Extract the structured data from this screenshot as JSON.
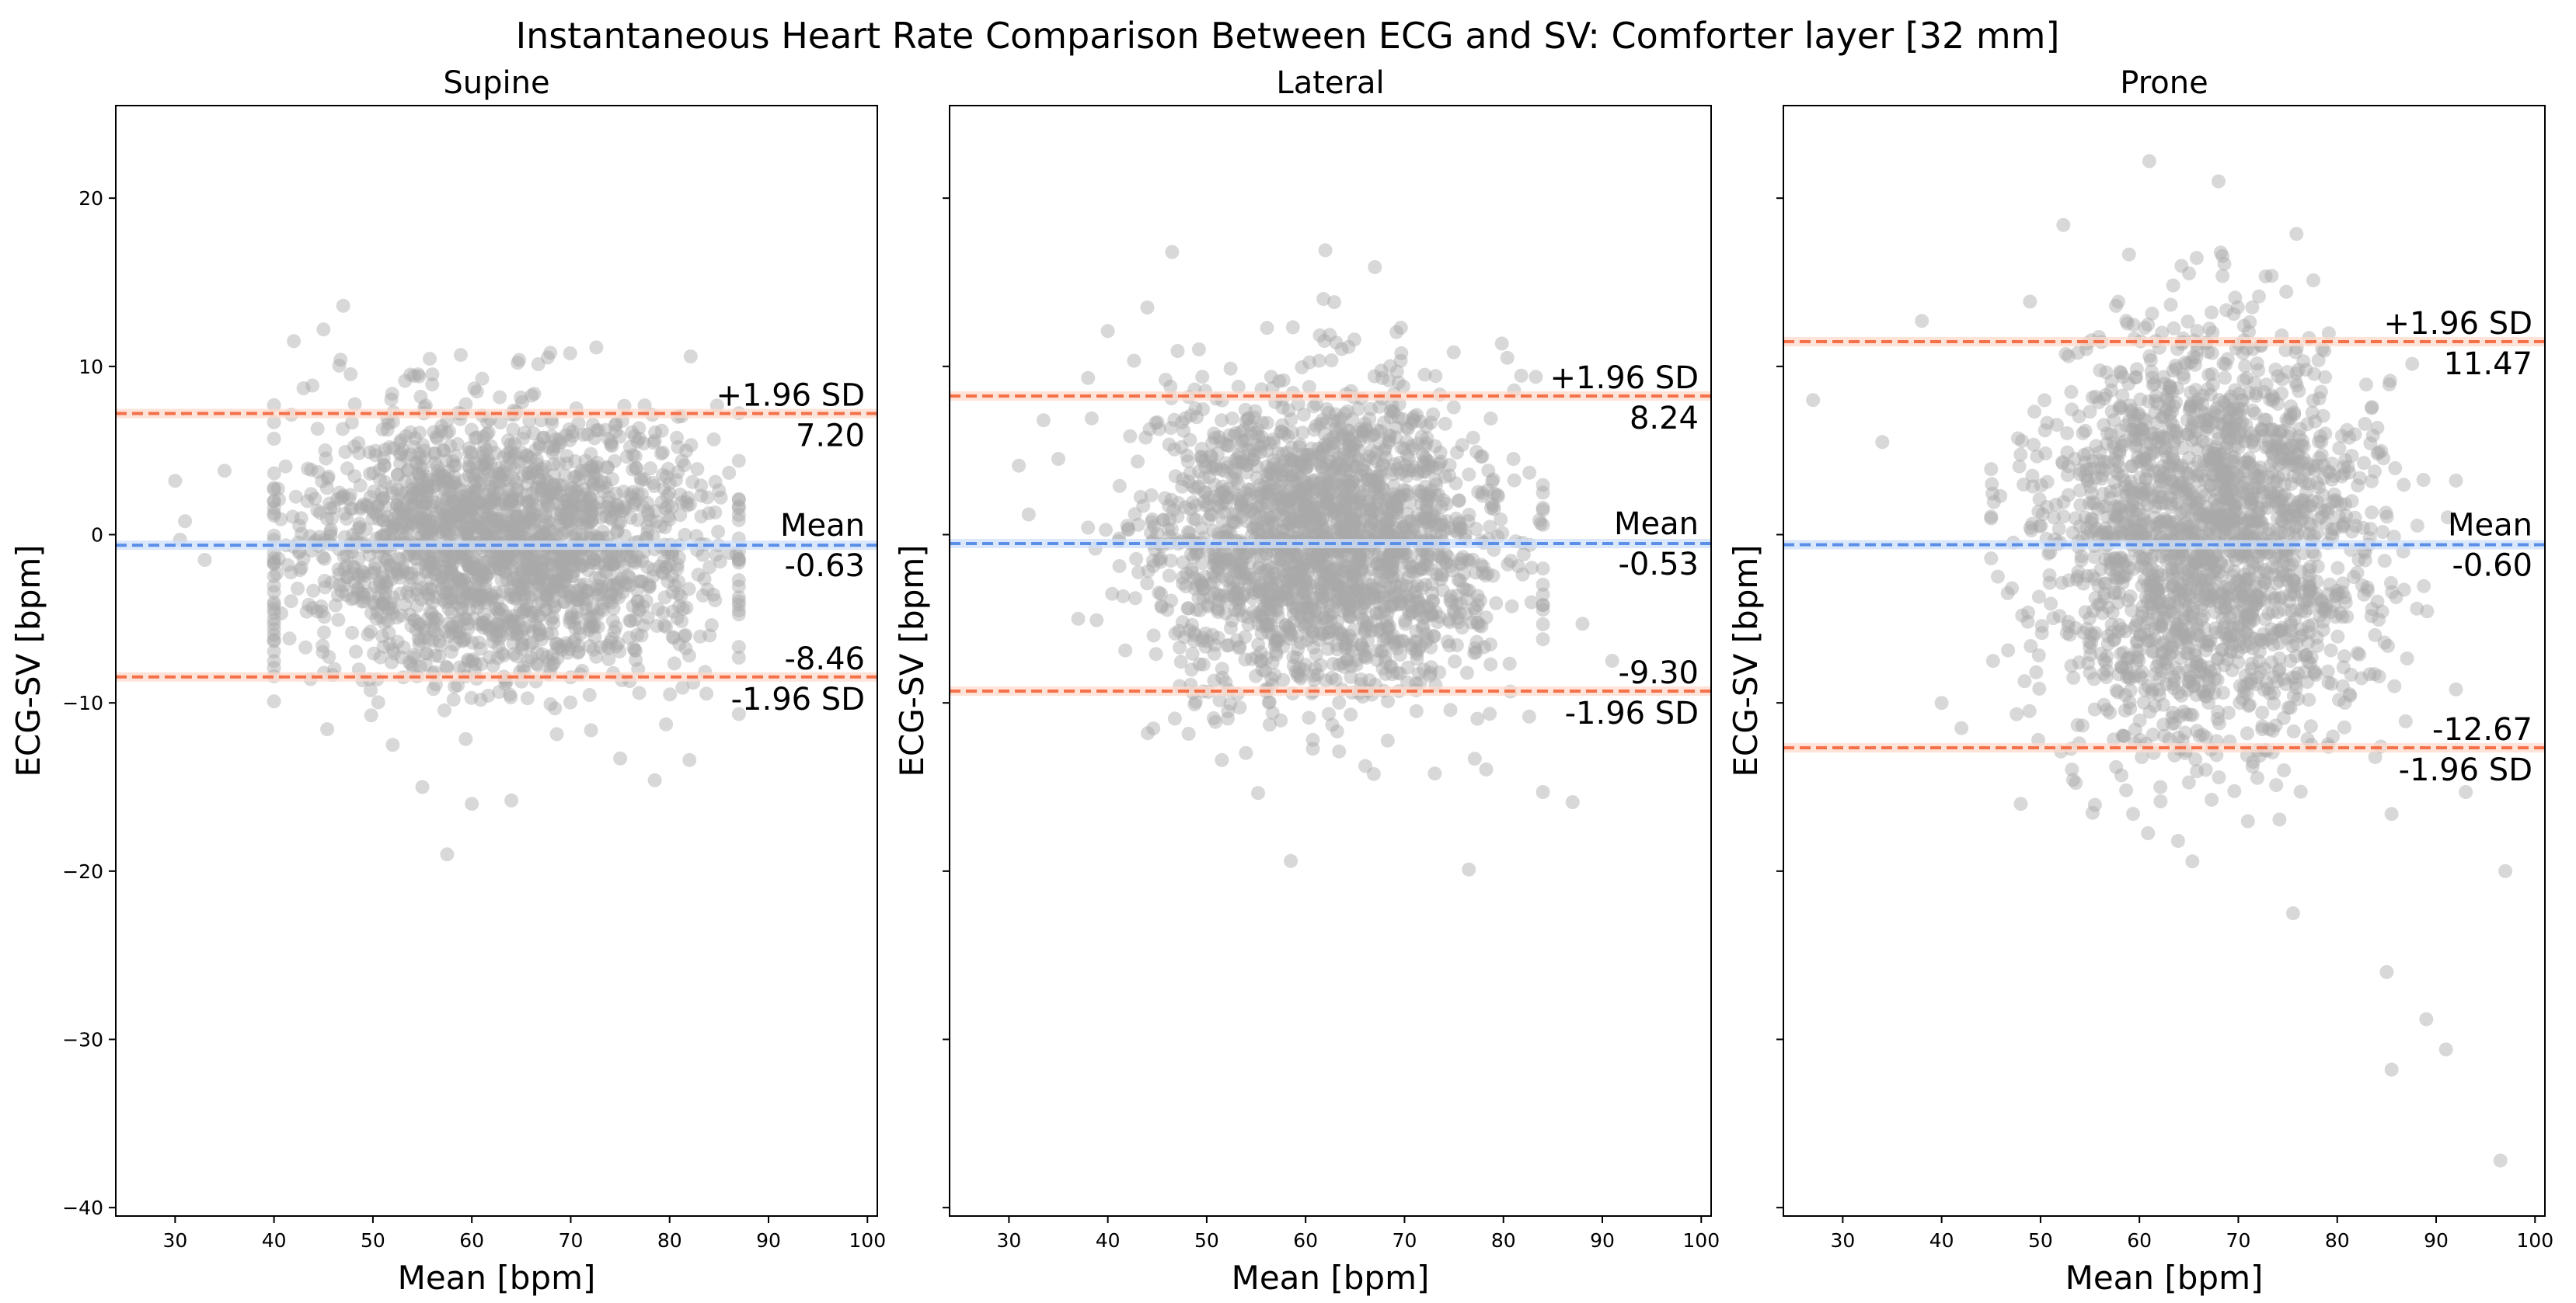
{
  "figure_title": "Instantaneous Heart Rate Comparison Between ECG and SV: Comforter layer [32 mm]",
  "colors": {
    "points": "#a9a9a9",
    "mean_line": "#5b8fe8",
    "limit_line": "#f4714a",
    "limit_band": "#fdd9cc",
    "mean_band": "#cfdffa"
  },
  "chart_data": [
    {
      "type": "scatter",
      "title": "Supine",
      "xlabel": "Mean [bpm]",
      "ylabel": "ECG-SV [bpm]",
      "xlim": [
        24,
        101
      ],
      "ylim": [
        -40.5,
        25.5
      ],
      "xticks": [
        30,
        40,
        50,
        60,
        70,
        80,
        90,
        100
      ],
      "yticks": [
        20,
        10,
        0,
        -10,
        -20,
        -30,
        -40
      ],
      "ytick_labels": [
        "20",
        "10",
        "0",
        "−10",
        "−20",
        "−30",
        "−40"
      ],
      "show_ytick_labels": true,
      "mean": -0.63,
      "upper_loa": 7.2,
      "lower_loa": -8.46,
      "mean_label": "Mean",
      "mean_value_label": "-0.63",
      "upper_label": "+1.96 SD",
      "upper_value_label": "7.20",
      "lower_label": "-1.96 SD",
      "lower_value_label": "-8.46",
      "cloud": {
        "n": 2100,
        "x_center": 63,
        "x_sd": 10.5,
        "x_min": 40,
        "x_max": 87,
        "y_sd": 4.0,
        "seed": 11
      },
      "outliers": [
        [
          30,
          3.2
        ],
        [
          31,
          0.8
        ],
        [
          30.5,
          -0.3
        ],
        [
          33,
          -1.5
        ],
        [
          35,
          3.8
        ],
        [
          42,
          11.5
        ],
        [
          45,
          12.2
        ],
        [
          47,
          13.6
        ],
        [
          55,
          -15
        ],
        [
          57.5,
          -19
        ],
        [
          60,
          -16
        ],
        [
          64,
          -15.8
        ],
        [
          78.5,
          -14.6
        ],
        [
          82,
          -13.4
        ],
        [
          52,
          -12.5
        ],
        [
          75,
          -13.3
        ]
      ]
    },
    {
      "type": "scatter",
      "title": "Lateral",
      "xlabel": "Mean [bpm]",
      "ylabel": "ECG-SV [bpm]",
      "xlim": [
        24,
        101
      ],
      "ylim": [
        -40.5,
        25.5
      ],
      "xticks": [
        30,
        40,
        50,
        60,
        70,
        80,
        90,
        100
      ],
      "yticks": [
        20,
        10,
        0,
        -10,
        -20,
        -30,
        -40
      ],
      "ytick_labels": [
        "20",
        "10",
        "0",
        "−10",
        "−20",
        "−30",
        "−40"
      ],
      "show_ytick_labels": false,
      "mean": -0.53,
      "upper_loa": 8.24,
      "lower_loa": -9.3,
      "mean_label": "Mean",
      "mean_value_label": "-0.53",
      "upper_label": "+1.96 SD",
      "upper_value_label": "8.24",
      "lower_label": "-1.96 SD",
      "lower_value_label": "-9.30",
      "cloud": {
        "n": 2100,
        "x_center": 62,
        "x_sd": 8.5,
        "x_min": 38,
        "x_max": 84,
        "y_sd": 4.6,
        "seed": 23
      },
      "outliers": [
        [
          31,
          4.1
        ],
        [
          32,
          1.2
        ],
        [
          33.5,
          6.8
        ],
        [
          35,
          4.5
        ],
        [
          37,
          -5
        ],
        [
          40,
          12.1
        ],
        [
          44,
          13.5
        ],
        [
          46.5,
          16.8
        ],
        [
          58.5,
          -19.4
        ],
        [
          76.5,
          -19.9
        ],
        [
          84,
          -15.3
        ],
        [
          87,
          -15.9
        ],
        [
          91,
          -7.5
        ],
        [
          88,
          -5.3
        ],
        [
          62,
          16.9
        ],
        [
          67,
          15.9
        ]
      ]
    },
    {
      "type": "scatter",
      "title": "Prone",
      "xlabel": "Mean [bpm]",
      "ylabel": "ECG-SV [bpm]",
      "xlim": [
        24,
        101
      ],
      "ylim": [
        -40.5,
        25.5
      ],
      "xticks": [
        30,
        40,
        50,
        60,
        70,
        80,
        90,
        100
      ],
      "yticks": [
        20,
        10,
        0,
        -10,
        -20,
        -30,
        -40
      ],
      "ytick_labels": [
        "20",
        "10",
        "0",
        "−10",
        "−20",
        "−30",
        "−40"
      ],
      "show_ytick_labels": false,
      "mean": -0.6,
      "upper_loa": 11.47,
      "lower_loa": -12.67,
      "mean_label": "Mean",
      "mean_value_label": "-0.60",
      "upper_label": "+1.96 SD",
      "upper_value_label": "11.47",
      "lower_label": "-1.96 SD",
      "lower_value_label": "-12.67",
      "cloud": {
        "n": 2100,
        "x_center": 67,
        "x_sd": 8.0,
        "x_min": 45,
        "x_max": 92,
        "y_sd": 6.2,
        "seed": 37
      },
      "outliers": [
        [
          27,
          8.0
        ],
        [
          34,
          5.5
        ],
        [
          38,
          12.7
        ],
        [
          40,
          -10
        ],
        [
          42,
          -11.5
        ],
        [
          48,
          -16
        ],
        [
          85,
          -26
        ],
        [
          85.5,
          -31.8
        ],
        [
          89,
          -28.8
        ],
        [
          91,
          -30.6
        ],
        [
          97,
          -20
        ],
        [
          96.5,
          -37.2
        ],
        [
          61,
          22.2
        ],
        [
          68,
          21.0
        ],
        [
          92,
          -9.2
        ],
        [
          93,
          -15.3
        ]
      ]
    }
  ]
}
